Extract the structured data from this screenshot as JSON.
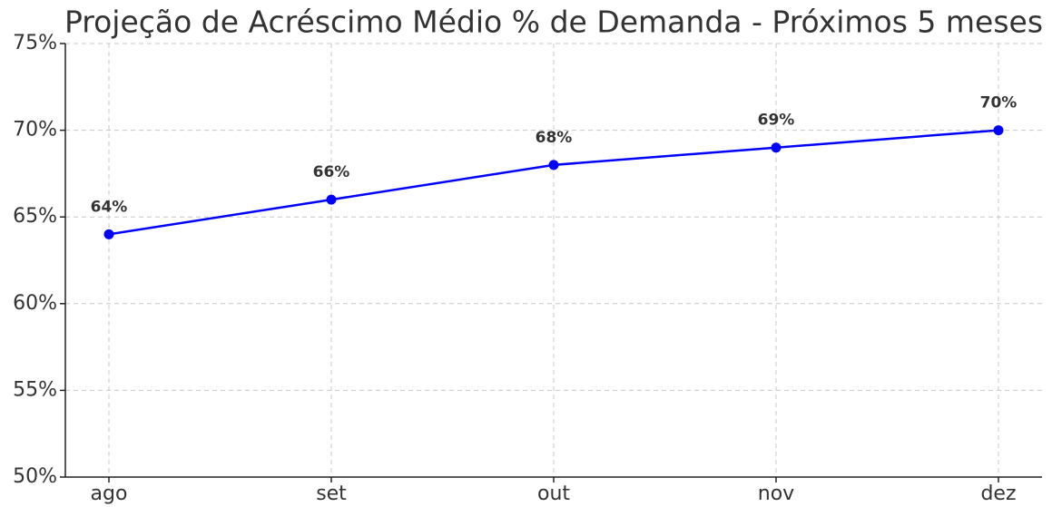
{
  "chart_data": {
    "type": "line",
    "title": "Projeção de Acréscimo Médio % de Demanda - Próximos 5 meses",
    "categories": [
      "ago",
      "set",
      "out",
      "nov",
      "dez"
    ],
    "values": [
      64,
      66,
      68,
      69,
      70
    ],
    "value_labels": [
      "64%",
      "66%",
      "68%",
      "69%",
      "70%"
    ],
    "color": "#0000ff",
    "ylim": [
      50,
      75
    ],
    "yticks": [
      {
        "value": 50,
        "label": "50%"
      },
      {
        "value": 55,
        "label": "55%"
      },
      {
        "value": 60,
        "label": "60%"
      },
      {
        "value": 65,
        "label": "65%"
      },
      {
        "value": 70,
        "label": "70%"
      },
      {
        "value": 75,
        "label": "75%"
      }
    ],
    "grid": true
  }
}
